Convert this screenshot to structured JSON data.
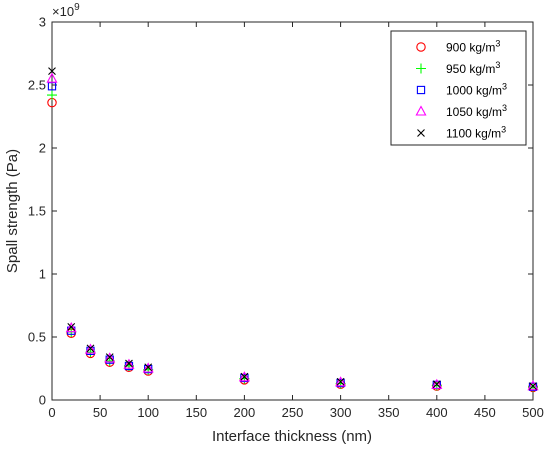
{
  "chart_data": {
    "type": "scatter",
    "title": "",
    "xlabel": "Interface thickness (nm)",
    "ylabel": "Spall strength (Pa)",
    "xlim": [
      0,
      500
    ],
    "ylim": [
      0,
      3
    ],
    "y_multiplier_base": "10",
    "y_multiplier_exponent": "9",
    "x_ticks": [
      "0",
      "50",
      "100",
      "150",
      "200",
      "250",
      "300",
      "350",
      "400",
      "450",
      "500"
    ],
    "y_ticks": [
      "0",
      "0.5",
      "1",
      "1.5",
      "2",
      "2.5",
      "3"
    ],
    "grid": false,
    "legend_position": "top-right",
    "x": [
      0,
      20,
      40,
      60,
      80,
      100,
      200,
      300,
      400,
      500
    ],
    "series": [
      {
        "label_main": "900 kg/m",
        "label_sup": "3",
        "marker": "circle",
        "color": "#ff0000",
        "values": [
          2.36,
          0.53,
          0.37,
          0.3,
          0.26,
          0.23,
          0.16,
          0.125,
          0.11,
          0.1
        ]
      },
      {
        "label_main": "950 kg/m",
        "label_sup": "3",
        "marker": "plus",
        "color": "#00ff00",
        "values": [
          2.42,
          0.54,
          0.38,
          0.31,
          0.27,
          0.24,
          0.17,
          0.13,
          0.115,
          0.105
        ]
      },
      {
        "label_main": "1000 kg/m",
        "label_sup": "3",
        "marker": "square",
        "color": "#0000ff",
        "values": [
          2.49,
          0.55,
          0.39,
          0.32,
          0.27,
          0.245,
          0.175,
          0.135,
          0.12,
          0.105
        ]
      },
      {
        "label_main": "1050 kg/m",
        "label_sup": "3",
        "marker": "triangle",
        "color": "#ff00ff",
        "values": [
          2.55,
          0.57,
          0.4,
          0.33,
          0.28,
          0.25,
          0.18,
          0.14,
          0.12,
          0.11
        ]
      },
      {
        "label_main": "1100 kg/m",
        "label_sup": "3",
        "marker": "x",
        "color": "#000000",
        "values": [
          2.61,
          0.58,
          0.41,
          0.34,
          0.29,
          0.26,
          0.185,
          0.145,
          0.125,
          0.11
        ]
      }
    ]
  }
}
